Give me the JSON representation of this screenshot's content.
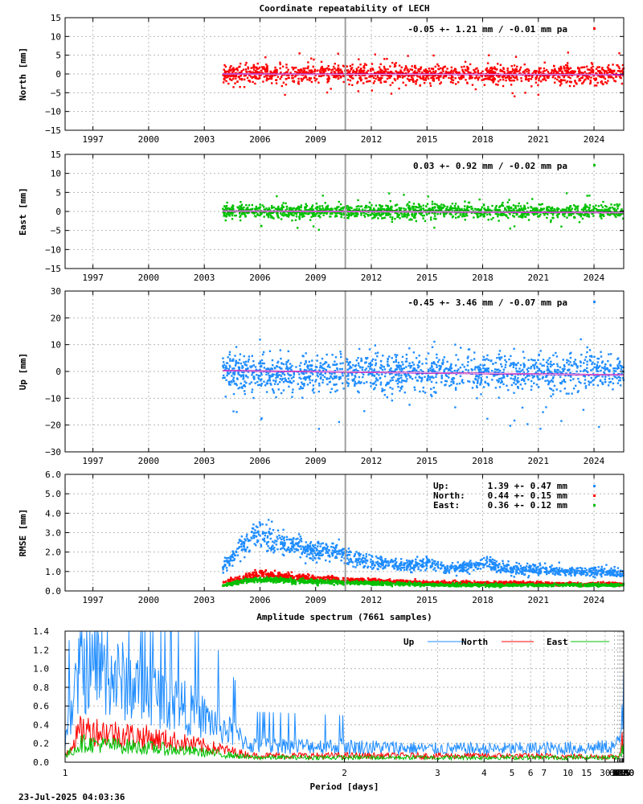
{
  "chart_data": [
    {
      "type": "scatter",
      "title": "Coordinate repeatability of LECH",
      "ylabel": "North [mm]",
      "ylim": [
        -15,
        15
      ],
      "yticks": [
        -15,
        -10,
        -5,
        0,
        5,
        10,
        15
      ],
      "xlim": [
        1995.5,
        2025.6
      ],
      "xticks": [
        1997,
        2000,
        2003,
        2006,
        2009,
        2012,
        2015,
        2018,
        2021,
        2024
      ],
      "grid": true,
      "legend_position": "top-right",
      "annotation": "-0.05 +- 1.21 mm / -0.01 mm pa",
      "series": [
        {
          "color": "#ff0000",
          "x_range": [
            2004.0,
            2025.6
          ],
          "mean": -0.05,
          "std": 1.21,
          "spread": [
            -6,
            6
          ]
        }
      ],
      "trend": {
        "color": "#b000b0",
        "x": [
          2004.0,
          2025.6
        ],
        "y": [
          0.0,
          -0.2
        ]
      },
      "marker_line": {
        "x": 2010.6,
        "color": "#a0a0a0"
      }
    },
    {
      "type": "scatter",
      "ylabel": "East [mm]",
      "ylim": [
        -15,
        15
      ],
      "yticks": [
        -15,
        -10,
        -5,
        0,
        5,
        10,
        15
      ],
      "xlim": [
        1995.5,
        2025.6
      ],
      "xticks": [
        1997,
        2000,
        2003,
        2006,
        2009,
        2012,
        2015,
        2018,
        2021,
        2024
      ],
      "grid": true,
      "legend_position": "top-right",
      "annotation": "0.03 +- 0.92 mm / -0.02 mm pa",
      "series": [
        {
          "color": "#00c000",
          "x_range": [
            2004.0,
            2025.6
          ],
          "mean": 0.03,
          "std": 0.92,
          "spread": [
            -5,
            5
          ]
        }
      ],
      "trend": {
        "color": "#b000b0",
        "x": [
          2004.0,
          2025.6
        ],
        "y": [
          0.1,
          -0.3
        ]
      },
      "marker_line": {
        "x": 2010.6,
        "color": "#a0a0a0"
      }
    },
    {
      "type": "scatter",
      "ylabel": "Up [mm]",
      "ylim": [
        -30,
        30
      ],
      "yticks": [
        -30,
        -20,
        -10,
        0,
        10,
        20,
        30
      ],
      "xlim": [
        1995.5,
        2025.6
      ],
      "xticks": [
        1997,
        2000,
        2003,
        2006,
        2009,
        2012,
        2015,
        2018,
        2021,
        2024
      ],
      "grid": true,
      "legend_position": "top-right",
      "annotation": "-0.45 +- 3.46 mm / -0.07 mm pa",
      "series": [
        {
          "color": "#1e8cff",
          "x_range": [
            2004.0,
            2025.6
          ],
          "mean": -0.45,
          "std": 3.46,
          "spread": [
            -22,
            12
          ]
        }
      ],
      "trend": {
        "color": "#b000b0",
        "x": [
          2004.0,
          2025.6
        ],
        "y": [
          0.3,
          -1.3
        ]
      },
      "marker_line": {
        "x": 2010.6,
        "color": "#a0a0a0"
      }
    },
    {
      "type": "scatter",
      "ylabel": "RMSE [mm]",
      "ylim": [
        0,
        6
      ],
      "yticks": [
        "0.0",
        "1.0",
        "2.0",
        "3.0",
        "4.0",
        "5.0",
        "6.0"
      ],
      "xlim": [
        1995.5,
        2025.6
      ],
      "xticks": [
        1997,
        2000,
        2003,
        2006,
        2009,
        2012,
        2015,
        2018,
        2021,
        2024
      ],
      "grid": true,
      "legend_position": "top-right",
      "legend": [
        {
          "label": "Up:",
          "value": "1.39 +- 0.47 mm",
          "color": "#1e8cff"
        },
        {
          "label": "North:",
          "value": "0.44 +- 0.15 mm",
          "color": "#ff0000"
        },
        {
          "label": "East:",
          "value": "0.36 +- 0.12 mm",
          "color": "#00c000"
        }
      ],
      "series": [
        {
          "color": "#1e8cff",
          "x": [
            2004.0,
            2005.5,
            2006.0,
            2007.0,
            2008.0,
            2009.0,
            2010.0,
            2011.0,
            2012.0,
            2013.0,
            2014.0,
            2015.0,
            2016.0,
            2017.0,
            2018.0,
            2019.0,
            2020.0,
            2021.0,
            2022.0,
            2023.0,
            2024.0,
            2025.6
          ],
          "y": [
            1.2,
            2.8,
            2.9,
            2.5,
            2.3,
            2.0,
            2.1,
            1.7,
            1.5,
            1.4,
            1.3,
            1.5,
            1.1,
            1.2,
            1.5,
            1.2,
            1.1,
            1.1,
            1.0,
            1.0,
            1.0,
            0.9
          ]
        },
        {
          "color": "#ff0000",
          "x": [
            2004.0,
            2005.5,
            2006.0,
            2008.0,
            2010.0,
            2012.0,
            2014.0,
            2016.0,
            2018.0,
            2020.0,
            2022.0,
            2024.0,
            2025.6
          ],
          "y": [
            0.4,
            0.8,
            0.9,
            0.7,
            0.6,
            0.5,
            0.45,
            0.4,
            0.4,
            0.4,
            0.35,
            0.35,
            0.35
          ]
        },
        {
          "color": "#00c000",
          "x": [
            2004.0,
            2005.5,
            2006.0,
            2008.0,
            2010.0,
            2012.0,
            2014.0,
            2016.0,
            2018.0,
            2020.0,
            2022.0,
            2024.0,
            2025.6
          ],
          "y": [
            0.3,
            0.55,
            0.6,
            0.5,
            0.45,
            0.4,
            0.35,
            0.3,
            0.3,
            0.3,
            0.3,
            0.3,
            0.3
          ]
        }
      ],
      "marker_line": {
        "x": 2010.6,
        "color": "#a0a0a0"
      }
    },
    {
      "type": "line",
      "title": "Amplitude spectrum (7661 samples)",
      "xlabel": "Period [days]",
      "ylim": [
        0,
        1.4
      ],
      "yticks": [
        "0.0",
        "0.2",
        "0.4",
        "0.6",
        "0.8",
        "1.0",
        "1.2",
        "1.4"
      ],
      "x_scale": "reciprocal",
      "xticks": [
        1,
        2,
        3,
        4,
        5,
        6,
        7,
        10,
        15,
        30,
        60,
        91,
        122,
        183,
        365,
        730,
        2190,
        4380,
        8760
      ],
      "grid": true,
      "legend_position": "top-right",
      "series": [
        {
          "name": "Up",
          "color": "#1e8cff",
          "x": [
            1.0,
            1.03,
            1.5,
            3,
            10,
            30,
            100,
            200,
            300,
            365,
            400,
            500,
            730,
            1000,
            2190,
            3000,
            4380,
            8760
          ],
          "y": [
            0.25,
            1.02,
            0.18,
            0.14,
            0.15,
            0.16,
            0.2,
            0.3,
            0.5,
            0.7,
            0.2,
            0.45,
            0.3,
            0.4,
            0.2,
            0.35,
            0.2,
            1.02
          ]
        },
        {
          "name": "North",
          "color": "#ff0000",
          "x": [
            1.0,
            1.03,
            1.5,
            10,
            100,
            365,
            400,
            730,
            1000,
            2190,
            4380,
            8760
          ],
          "y": [
            0.08,
            0.35,
            0.07,
            0.06,
            0.06,
            0.35,
            0.05,
            0.12,
            0.05,
            0.15,
            0.12,
            0.08
          ]
        },
        {
          "name": "East",
          "color": "#00c000",
          "x": [
            1.0,
            1.03,
            1.5,
            10,
            100,
            365,
            400,
            730,
            1000,
            2190,
            4380,
            8760
          ],
          "y": [
            0.06,
            0.2,
            0.05,
            0.05,
            0.05,
            0.2,
            0.05,
            0.1,
            0.08,
            0.12,
            0.1,
            0.22
          ]
        }
      ]
    }
  ],
  "timestamp": "23-Jul-2025 04:03:36"
}
